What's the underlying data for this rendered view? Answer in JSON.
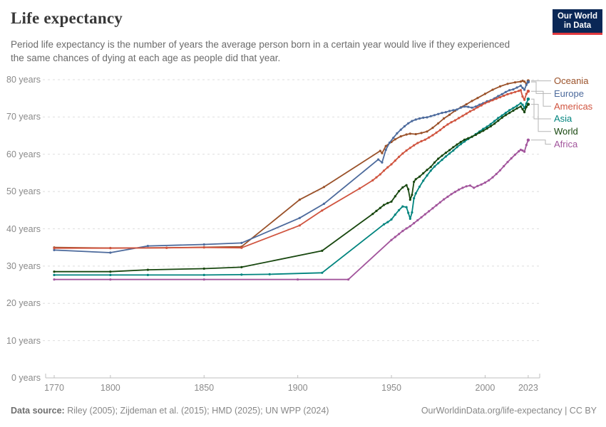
{
  "header": {
    "title": "Life expectancy",
    "subtitle": "Period life expectancy is the number of years the average person born in a certain year would live if they experienced the same chances of dying at each age as people did that year."
  },
  "logo": {
    "line1": "Our World",
    "line2": "in Data",
    "bg_color": "#0A2756",
    "bar_color": "#E0383E"
  },
  "footer": {
    "source_label": "Data source:",
    "source_text": " Riley (2005); Zijdeman et al. (2015); HMD (2025); UN WPP (2024)",
    "citation": "OurWorldinData.org/life-expectancy | CC BY"
  },
  "chart_data": {
    "type": "line",
    "title": "Life expectancy",
    "xlabel": "",
    "ylabel": "years",
    "xlim": [
      1765,
      2029
    ],
    "ylim": [
      0,
      80
    ],
    "grid": "horizontal-dashed",
    "legend_position": "right-end-of-line-labels",
    "x_ticks": [
      1770,
      1800,
      1850,
      1900,
      1950,
      2000,
      2023
    ],
    "x_tick_labels": [
      "1770",
      "1800",
      "1850",
      "1900",
      "1950",
      "2000",
      "2023"
    ],
    "y_ticks": [
      0,
      10,
      20,
      30,
      40,
      50,
      60,
      70,
      80
    ],
    "y_tick_labels": [
      "0 years",
      "10 years",
      "20 years",
      "30 years",
      "40 years",
      "50 years",
      "60 years",
      "70 years",
      "80 years"
    ],
    "series": [
      {
        "name": "Oceania",
        "color": "#9A5129",
        "points": [
          [
            1770,
            35.0
          ],
          [
            1800,
            34.85
          ],
          [
            1830,
            34.9
          ],
          [
            1850,
            35.05
          ],
          [
            1870,
            35.2
          ],
          [
            1901,
            47.8
          ],
          [
            1914,
            51.2
          ],
          [
            1944,
            60.9
          ],
          [
            1945,
            60.3
          ],
          [
            1947,
            62.2
          ],
          [
            1950,
            63.3
          ],
          [
            1952,
            64.0
          ],
          [
            1955,
            64.8
          ],
          [
            1958,
            65.3
          ],
          [
            1960,
            65.5
          ],
          [
            1963,
            65.4
          ],
          [
            1966,
            65.7
          ],
          [
            1969,
            66.1
          ],
          [
            1972,
            67.1
          ],
          [
            1975,
            68.3
          ],
          [
            1978,
            69.6
          ],
          [
            1981,
            70.6
          ],
          [
            1984,
            71.7
          ],
          [
            1987,
            72.6
          ],
          [
            1990,
            73.4
          ],
          [
            1993,
            74.3
          ],
          [
            1996,
            75.1
          ],
          [
            2000,
            76.2
          ],
          [
            2004,
            77.3
          ],
          [
            2008,
            78.2
          ],
          [
            2012,
            78.9
          ],
          [
            2016,
            79.3
          ],
          [
            2019,
            79.5
          ],
          [
            2020,
            79.7
          ],
          [
            2021,
            79.5
          ],
          [
            2022,
            78.9
          ],
          [
            2023,
            79.7
          ]
        ]
      },
      {
        "name": "Europe",
        "color": "#4C6A9C",
        "points": [
          [
            1770,
            34.3
          ],
          [
            1800,
            33.6
          ],
          [
            1820,
            35.4
          ],
          [
            1850,
            35.8
          ],
          [
            1870,
            36.2
          ],
          [
            1901,
            42.9
          ],
          [
            1914,
            46.7
          ],
          [
            1943,
            58.6
          ],
          [
            1945,
            57.8
          ],
          [
            1947,
            61.2
          ],
          [
            1949,
            63.1
          ],
          [
            1951,
            64.4
          ],
          [
            1953,
            65.6
          ],
          [
            1955,
            66.6
          ],
          [
            1957,
            67.5
          ],
          [
            1959,
            68.3
          ],
          [
            1961,
            68.9
          ],
          [
            1963,
            69.3
          ],
          [
            1965,
            69.6
          ],
          [
            1967,
            69.8
          ],
          [
            1969,
            69.9
          ],
          [
            1971,
            70.2
          ],
          [
            1973,
            70.5
          ],
          [
            1975,
            70.8
          ],
          [
            1977,
            71.1
          ],
          [
            1979,
            71.3
          ],
          [
            1981,
            71.6
          ],
          [
            1983,
            71.8
          ],
          [
            1985,
            72.0
          ],
          [
            1987,
            72.5
          ],
          [
            1989,
            72.8
          ],
          [
            1991,
            72.7
          ],
          [
            1993,
            72.5
          ],
          [
            1995,
            72.8
          ],
          [
            1997,
            73.3
          ],
          [
            1999,
            73.7
          ],
          [
            2001,
            74.2
          ],
          [
            2003,
            74.5
          ],
          [
            2005,
            75.0
          ],
          [
            2007,
            75.6
          ],
          [
            2009,
            76.1
          ],
          [
            2011,
            76.7
          ],
          [
            2013,
            77.2
          ],
          [
            2015,
            77.4
          ],
          [
            2017,
            77.9
          ],
          [
            2019,
            78.4
          ],
          [
            2020,
            77.8
          ],
          [
            2021,
            77.3
          ],
          [
            2022,
            78.6
          ],
          [
            2023,
            79.4
          ]
        ]
      },
      {
        "name": "Americas",
        "color": "#D0543F",
        "points": [
          [
            1770,
            34.8
          ],
          [
            1800,
            34.8
          ],
          [
            1830,
            34.9
          ],
          [
            1850,
            35.0
          ],
          [
            1870,
            34.9
          ],
          [
            1901,
            40.9
          ],
          [
            1913,
            44.9
          ],
          [
            1933,
            50.8
          ],
          [
            1940,
            53.0
          ],
          [
            1942,
            53.8
          ],
          [
            1944,
            54.6
          ],
          [
            1946,
            55.6
          ],
          [
            1948,
            56.5
          ],
          [
            1950,
            57.3
          ],
          [
            1952,
            58.3
          ],
          [
            1954,
            59.3
          ],
          [
            1956,
            60.2
          ],
          [
            1958,
            61.0
          ],
          [
            1960,
            61.7
          ],
          [
            1962,
            62.4
          ],
          [
            1964,
            63.0
          ],
          [
            1966,
            63.5
          ],
          [
            1968,
            63.9
          ],
          [
            1970,
            64.5
          ],
          [
            1972,
            65.1
          ],
          [
            1974,
            65.8
          ],
          [
            1976,
            66.5
          ],
          [
            1978,
            67.3
          ],
          [
            1980,
            68.0
          ],
          [
            1982,
            68.6
          ],
          [
            1984,
            69.1
          ],
          [
            1986,
            69.7
          ],
          [
            1988,
            70.3
          ],
          [
            1990,
            70.9
          ],
          [
            1992,
            71.5
          ],
          [
            1994,
            72.0
          ],
          [
            1996,
            72.6
          ],
          [
            1998,
            73.1
          ],
          [
            2000,
            73.7
          ],
          [
            2002,
            74.1
          ],
          [
            2004,
            74.5
          ],
          [
            2006,
            74.9
          ],
          [
            2008,
            75.3
          ],
          [
            2010,
            75.7
          ],
          [
            2012,
            76.1
          ],
          [
            2014,
            76.4
          ],
          [
            2016,
            76.7
          ],
          [
            2018,
            77.0
          ],
          [
            2019,
            77.2
          ],
          [
            2020,
            75.5
          ],
          [
            2021,
            74.6
          ],
          [
            2022,
            76.2
          ],
          [
            2023,
            76.9
          ]
        ]
      },
      {
        "name": "Asia",
        "color": "#00847E",
        "points": [
          [
            1770,
            27.6
          ],
          [
            1800,
            27.6
          ],
          [
            1820,
            27.6
          ],
          [
            1850,
            27.6
          ],
          [
            1870,
            27.7
          ],
          [
            1885,
            27.8
          ],
          [
            1913,
            28.2
          ],
          [
            1946,
            41.2
          ],
          [
            1948,
            41.8
          ],
          [
            1950,
            42.5
          ],
          [
            1952,
            43.8
          ],
          [
            1954,
            45.0
          ],
          [
            1956,
            46.0
          ],
          [
            1958,
            45.8
          ],
          [
            1959,
            44.3
          ],
          [
            1960,
            42.7
          ],
          [
            1961,
            44.4
          ],
          [
            1962,
            48.2
          ],
          [
            1963,
            49.5
          ],
          [
            1965,
            51.3
          ],
          [
            1967,
            52.9
          ],
          [
            1969,
            54.3
          ],
          [
            1971,
            55.6
          ],
          [
            1973,
            56.7
          ],
          [
            1975,
            57.6
          ],
          [
            1977,
            58.5
          ],
          [
            1979,
            59.4
          ],
          [
            1981,
            60.2
          ],
          [
            1983,
            61.0
          ],
          [
            1985,
            61.9
          ],
          [
            1987,
            62.7
          ],
          [
            1989,
            63.4
          ],
          [
            1991,
            64.1
          ],
          [
            1993,
            64.7
          ],
          [
            1995,
            65.4
          ],
          [
            1997,
            66.1
          ],
          [
            1999,
            66.8
          ],
          [
            2001,
            67.4
          ],
          [
            2003,
            68.1
          ],
          [
            2005,
            68.9
          ],
          [
            2007,
            69.7
          ],
          [
            2009,
            70.4
          ],
          [
            2011,
            71.1
          ],
          [
            2013,
            71.8
          ],
          [
            2015,
            72.4
          ],
          [
            2017,
            73.0
          ],
          [
            2019,
            73.7
          ],
          [
            2020,
            73.3
          ],
          [
            2021,
            72.4
          ],
          [
            2022,
            73.6
          ],
          [
            2023,
            74.8
          ]
        ]
      },
      {
        "name": "World",
        "color": "#18470F",
        "points": [
          [
            1770,
            28.5
          ],
          [
            1800,
            28.5
          ],
          [
            1820,
            29.0
          ],
          [
            1850,
            29.3
          ],
          [
            1870,
            29.7
          ],
          [
            1913,
            34.1
          ],
          [
            1940,
            44.0
          ],
          [
            1942,
            44.8
          ],
          [
            1944,
            45.6
          ],
          [
            1946,
            46.4
          ],
          [
            1948,
            46.9
          ],
          [
            1950,
            47.3
          ],
          [
            1952,
            48.7
          ],
          [
            1954,
            50.1
          ],
          [
            1956,
            51.1
          ],
          [
            1958,
            51.7
          ],
          [
            1959,
            50.6
          ],
          [
            1960,
            47.8
          ],
          [
            1961,
            49.1
          ],
          [
            1962,
            52.6
          ],
          [
            1963,
            53.3
          ],
          [
            1965,
            54.0
          ],
          [
            1967,
            54.9
          ],
          [
            1969,
            55.8
          ],
          [
            1971,
            56.6
          ],
          [
            1973,
            57.8
          ],
          [
            1975,
            58.8
          ],
          [
            1977,
            59.6
          ],
          [
            1979,
            60.4
          ],
          [
            1981,
            61.1
          ],
          [
            1983,
            61.9
          ],
          [
            1985,
            62.6
          ],
          [
            1987,
            63.3
          ],
          [
            1989,
            63.9
          ],
          [
            1991,
            64.3
          ],
          [
            1993,
            64.7
          ],
          [
            1995,
            65.2
          ],
          [
            1997,
            65.8
          ],
          [
            1999,
            66.3
          ],
          [
            2001,
            66.9
          ],
          [
            2003,
            67.5
          ],
          [
            2005,
            68.2
          ],
          [
            2007,
            69.0
          ],
          [
            2009,
            69.8
          ],
          [
            2011,
            70.5
          ],
          [
            2013,
            71.1
          ],
          [
            2015,
            71.7
          ],
          [
            2017,
            72.3
          ],
          [
            2019,
            72.8
          ],
          [
            2020,
            72.1
          ],
          [
            2021,
            71.3
          ],
          [
            2022,
            72.7
          ],
          [
            2023,
            73.4
          ]
        ]
      },
      {
        "name": "Africa",
        "color": "#A2559C",
        "points": [
          [
            1770,
            26.4
          ],
          [
            1800,
            26.4
          ],
          [
            1850,
            26.4
          ],
          [
            1900,
            26.4
          ],
          [
            1927,
            26.4
          ],
          [
            1950,
            37.0
          ],
          [
            1952,
            37.8
          ],
          [
            1954,
            38.6
          ],
          [
            1956,
            39.4
          ],
          [
            1958,
            40.1
          ],
          [
            1960,
            40.7
          ],
          [
            1962,
            41.5
          ],
          [
            1964,
            42.3
          ],
          [
            1966,
            43.1
          ],
          [
            1968,
            43.9
          ],
          [
            1970,
            44.7
          ],
          [
            1972,
            45.5
          ],
          [
            1974,
            46.3
          ],
          [
            1976,
            47.1
          ],
          [
            1978,
            47.9
          ],
          [
            1980,
            48.6
          ],
          [
            1982,
            49.3
          ],
          [
            1984,
            49.9
          ],
          [
            1986,
            50.5
          ],
          [
            1988,
            51.0
          ],
          [
            1990,
            51.4
          ],
          [
            1992,
            51.6
          ],
          [
            1994,
            51.0
          ],
          [
            1996,
            51.5
          ],
          [
            1998,
            51.9
          ],
          [
            2000,
            52.4
          ],
          [
            2002,
            53.0
          ],
          [
            2004,
            53.8
          ],
          [
            2006,
            54.7
          ],
          [
            2008,
            55.7
          ],
          [
            2010,
            56.8
          ],
          [
            2012,
            57.9
          ],
          [
            2014,
            58.9
          ],
          [
            2016,
            59.9
          ],
          [
            2018,
            60.8
          ],
          [
            2019,
            61.2
          ],
          [
            2020,
            61.0
          ],
          [
            2021,
            60.7
          ],
          [
            2022,
            62.5
          ],
          [
            2023,
            63.8
          ]
        ]
      }
    ]
  }
}
